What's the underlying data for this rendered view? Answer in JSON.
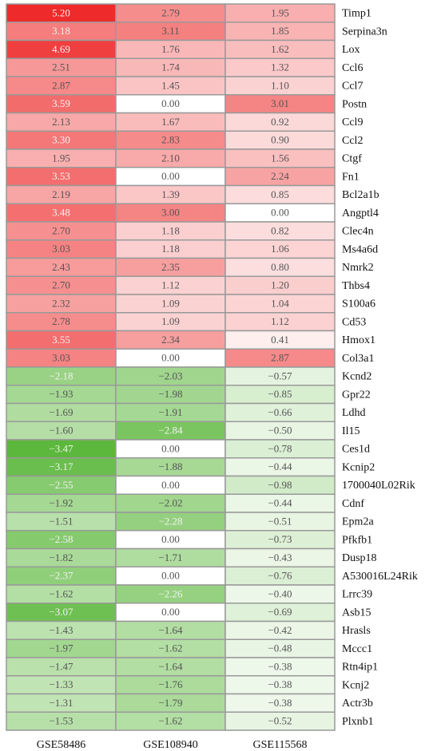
{
  "chart_data": {
    "type": "heatmap",
    "columns": [
      "GSE58486",
      "GSE108940",
      "GSE115568"
    ],
    "rows": [
      "Timp1",
      "Serpina3n",
      "Lox",
      "Ccl6",
      "Ccl7",
      "Postn",
      "Ccl9",
      "Ccl2",
      "Ctgf",
      "Fn1",
      "Bcl2a1b",
      "Angptl4",
      "Clec4n",
      "Ms4a6d",
      "Nmrk2",
      "Thbs4",
      "S100a6",
      "Cd53",
      "Hmox1",
      "Col3a1",
      "Kcnd2",
      "Gpr22",
      "Ldhd",
      "Il15",
      "Ces1d",
      "Kcnip2",
      "1700040L02Rik",
      "Cdnf",
      "Epm2a",
      "Pfkfb1",
      "Dusp18",
      "A530016L24Rik",
      "Lrrc39",
      "Asb15",
      "Hrasls",
      "Mccc1",
      "Rtn4ip1",
      "Kcnj2",
      "Actr3b",
      "Plxnb1"
    ],
    "values": [
      [
        5.2,
        2.79,
        1.95
      ],
      [
        3.18,
        3.11,
        1.85
      ],
      [
        4.69,
        1.76,
        1.62
      ],
      [
        2.51,
        1.74,
        1.32
      ],
      [
        2.87,
        1.45,
        1.1
      ],
      [
        3.59,
        0.0,
        3.01
      ],
      [
        2.13,
        1.67,
        0.92
      ],
      [
        3.3,
        2.83,
        0.9
      ],
      [
        1.95,
        2.1,
        1.56
      ],
      [
        3.53,
        0.0,
        2.24
      ],
      [
        2.19,
        1.39,
        0.85
      ],
      [
        3.48,
        3.0,
        0.0
      ],
      [
        2.7,
        1.18,
        0.82
      ],
      [
        3.03,
        1.18,
        1.06
      ],
      [
        2.43,
        2.35,
        0.8
      ],
      [
        2.7,
        1.12,
        1.2
      ],
      [
        2.32,
        1.09,
        1.04
      ],
      [
        2.78,
        1.09,
        1.12
      ],
      [
        3.55,
        2.34,
        0.41
      ],
      [
        3.03,
        0.0,
        2.87
      ],
      [
        -2.18,
        -2.03,
        -0.57
      ],
      [
        -1.93,
        -1.98,
        -0.85
      ],
      [
        -1.69,
        -1.91,
        -0.66
      ],
      [
        -1.6,
        -2.84,
        -0.5
      ],
      [
        -3.47,
        0.0,
        -0.78
      ],
      [
        -3.17,
        -1.88,
        -0.44
      ],
      [
        -2.55,
        0.0,
        -0.98
      ],
      [
        -1.92,
        -2.02,
        -0.44
      ],
      [
        -1.51,
        -2.28,
        -0.51
      ],
      [
        -2.58,
        0.0,
        -0.73
      ],
      [
        -1.82,
        -1.71,
        -0.43
      ],
      [
        -2.37,
        0.0,
        -0.76
      ],
      [
        -1.62,
        -2.26,
        -0.4
      ],
      [
        -3.07,
        0.0,
        -0.69
      ],
      [
        -1.43,
        -1.64,
        -0.42
      ],
      [
        -1.97,
        -1.62,
        -0.48
      ],
      [
        -1.47,
        -1.64,
        -0.38
      ],
      [
        -1.33,
        -1.76,
        -0.38
      ],
      [
        -1.31,
        -1.79,
        -0.38
      ],
      [
        -1.53,
        -1.62,
        -0.52
      ]
    ],
    "value_labels": [
      [
        "5.20",
        "2.79",
        "1.95"
      ],
      [
        "3.18",
        "3.11",
        "1.85"
      ],
      [
        "4.69",
        "1.76",
        "1.62"
      ],
      [
        "2.51",
        "1.74",
        "1.32"
      ],
      [
        "2.87",
        "1.45",
        "1.10"
      ],
      [
        "3.59",
        "0.00",
        "3.01"
      ],
      [
        "2.13",
        "1.67",
        "0.92"
      ],
      [
        "3.30",
        "2.83",
        "0.90"
      ],
      [
        "1.95",
        "2.10",
        "1.56"
      ],
      [
        "3.53",
        "0.00",
        "2.24"
      ],
      [
        "2.19",
        "1.39",
        "0.85"
      ],
      [
        "3.48",
        "3.00",
        "0.00"
      ],
      [
        "2.70",
        "1.18",
        "0.82"
      ],
      [
        "3.03",
        "1.18",
        "1.06"
      ],
      [
        "2.43",
        "2.35",
        "0.80"
      ],
      [
        "2.70",
        "1.12",
        "1.20"
      ],
      [
        "2.32",
        "1.09",
        "1.04"
      ],
      [
        "2.78",
        "1.09",
        "1.12"
      ],
      [
        "3.55",
        "2.34",
        "0.41"
      ],
      [
        "3.03",
        "0.00",
        "2.87"
      ],
      [
        "−2.18",
        "−2.03",
        "−0.57"
      ],
      [
        "−1.93",
        "−1.98",
        "−0.85"
      ],
      [
        "−1.69",
        "−1.91",
        "−0.66"
      ],
      [
        "−1.60",
        "−2.84",
        "−0.50"
      ],
      [
        "−3.47",
        "0.00",
        "−0.78"
      ],
      [
        "−3.17",
        "−1.88",
        "−0.44"
      ],
      [
        "−2.55",
        "0.00",
        "−0.98"
      ],
      [
        "−1.92",
        "−2.02",
        "−0.44"
      ],
      [
        "−1.51",
        "−2.28",
        "−0.51"
      ],
      [
        "−2.58",
        "0.00",
        "−0.73"
      ],
      [
        "−1.82",
        "−1.71",
        "−0.43"
      ],
      [
        "−2.37",
        "0.00",
        "−0.76"
      ],
      [
        "−1.62",
        "−2.26",
        "−0.40"
      ],
      [
        "−3.07",
        "0.00",
        "−0.69"
      ],
      [
        "−1.43",
        "−1.64",
        "−0.42"
      ],
      [
        "−1.97",
        "−1.62",
        "−0.48"
      ],
      [
        "−1.47",
        "−1.64",
        "−0.38"
      ],
      [
        "−1.33",
        "−1.76",
        "−0.38"
      ],
      [
        "−1.31",
        "−1.79",
        "−0.38"
      ],
      [
        "−1.53",
        "−1.62",
        "−0.52"
      ]
    ],
    "high_color": "#ee2a2a",
    "mid_color": "#ffffff",
    "low_color": "#5cb83c"
  }
}
